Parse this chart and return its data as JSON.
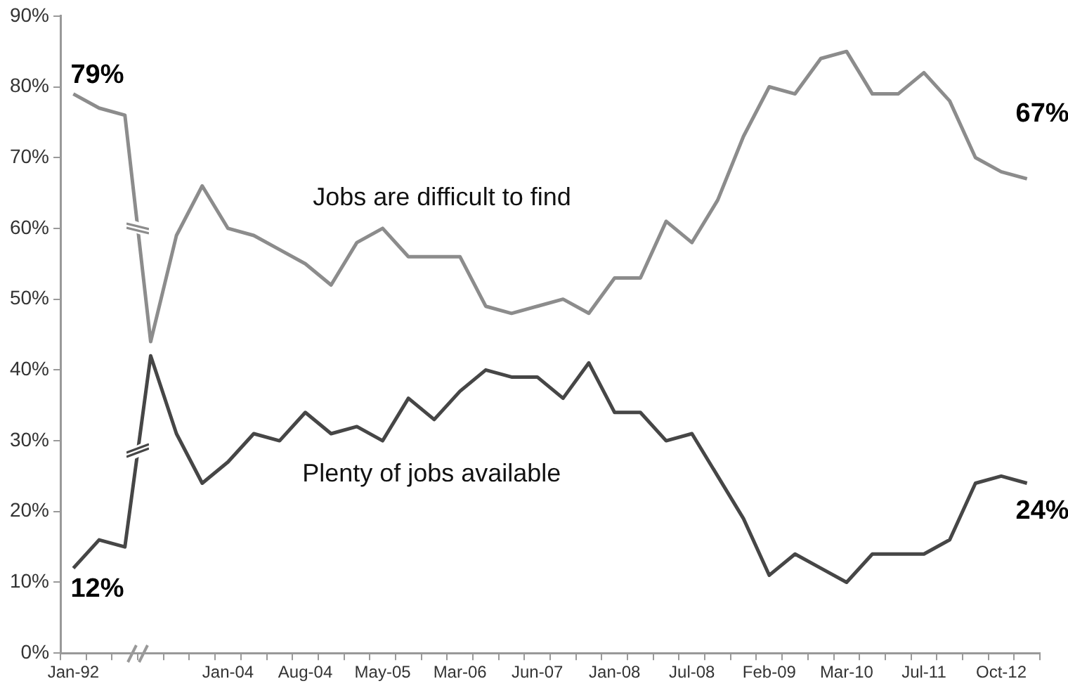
{
  "chart_data": {
    "type": "line",
    "categories": [
      "Jan-92",
      null,
      null,
      null,
      null,
      null,
      "Jan-04",
      null,
      null,
      "Aug-04",
      null,
      null,
      "May-05",
      null,
      null,
      "Mar-06",
      null,
      null,
      "Jun-07",
      null,
      null,
      "Jan-08",
      null,
      null,
      "Jul-08",
      null,
      null,
      "Feb-09",
      null,
      null,
      "Mar-10",
      null,
      null,
      "Jul-11",
      null,
      null,
      "Oct-12",
      null
    ],
    "series": [
      {
        "name": "Jobs are difficult to find",
        "color": "#8c8c8c",
        "values": [
          79,
          77,
          76,
          44,
          59,
          66,
          60,
          59,
          57,
          55,
          52,
          58,
          60,
          56,
          56,
          56,
          49,
          48,
          49,
          50,
          48,
          53,
          53,
          61,
          58,
          64,
          73,
          80,
          79,
          84,
          85,
          79,
          79,
          82,
          78,
          70,
          68,
          67
        ],
        "value_labels": [
          "79%",
          null,
          null,
          null,
          null,
          null,
          null,
          null,
          null,
          null,
          null,
          null,
          null,
          null,
          null,
          null,
          null,
          null,
          null,
          null,
          null,
          null,
          null,
          null,
          null,
          null,
          null,
          null,
          null,
          null,
          null,
          null,
          null,
          null,
          null,
          null,
          null,
          "67%"
        ]
      },
      {
        "name": "Plenty of jobs available",
        "color": "#464646",
        "values": [
          12,
          16,
          15,
          42,
          31,
          24,
          27,
          31,
          30,
          34,
          31,
          32,
          30,
          36,
          33,
          37,
          40,
          39,
          39,
          36,
          41,
          34,
          34,
          30,
          31,
          25,
          19,
          11,
          14,
          12,
          10,
          14,
          14,
          14,
          16,
          24,
          25,
          24
        ],
        "value_labels": [
          "12%",
          null,
          null,
          null,
          null,
          null,
          null,
          null,
          null,
          null,
          null,
          null,
          null,
          null,
          null,
          null,
          null,
          null,
          null,
          null,
          null,
          null,
          null,
          null,
          null,
          null,
          null,
          null,
          null,
          null,
          null,
          null,
          null,
          null,
          null,
          null,
          null,
          "24%"
        ]
      }
    ],
    "ylim": [
      0,
      90
    ],
    "yticks": [
      {
        "value": 0,
        "label": "0%"
      },
      {
        "value": 10,
        "label": "10%"
      },
      {
        "value": 20,
        "label": "20%"
      },
      {
        "value": 30,
        "label": "30%"
      },
      {
        "value": 40,
        "label": "40%"
      },
      {
        "value": 50,
        "label": "50%"
      },
      {
        "value": 60,
        "label": "60%"
      },
      {
        "value": 70,
        "label": "70%"
      },
      {
        "value": 80,
        "label": "80%"
      },
      {
        "value": 90,
        "label": "90%"
      }
    ],
    "grid": false,
    "legend": false,
    "marker": "none",
    "line_style": "solid"
  }
}
